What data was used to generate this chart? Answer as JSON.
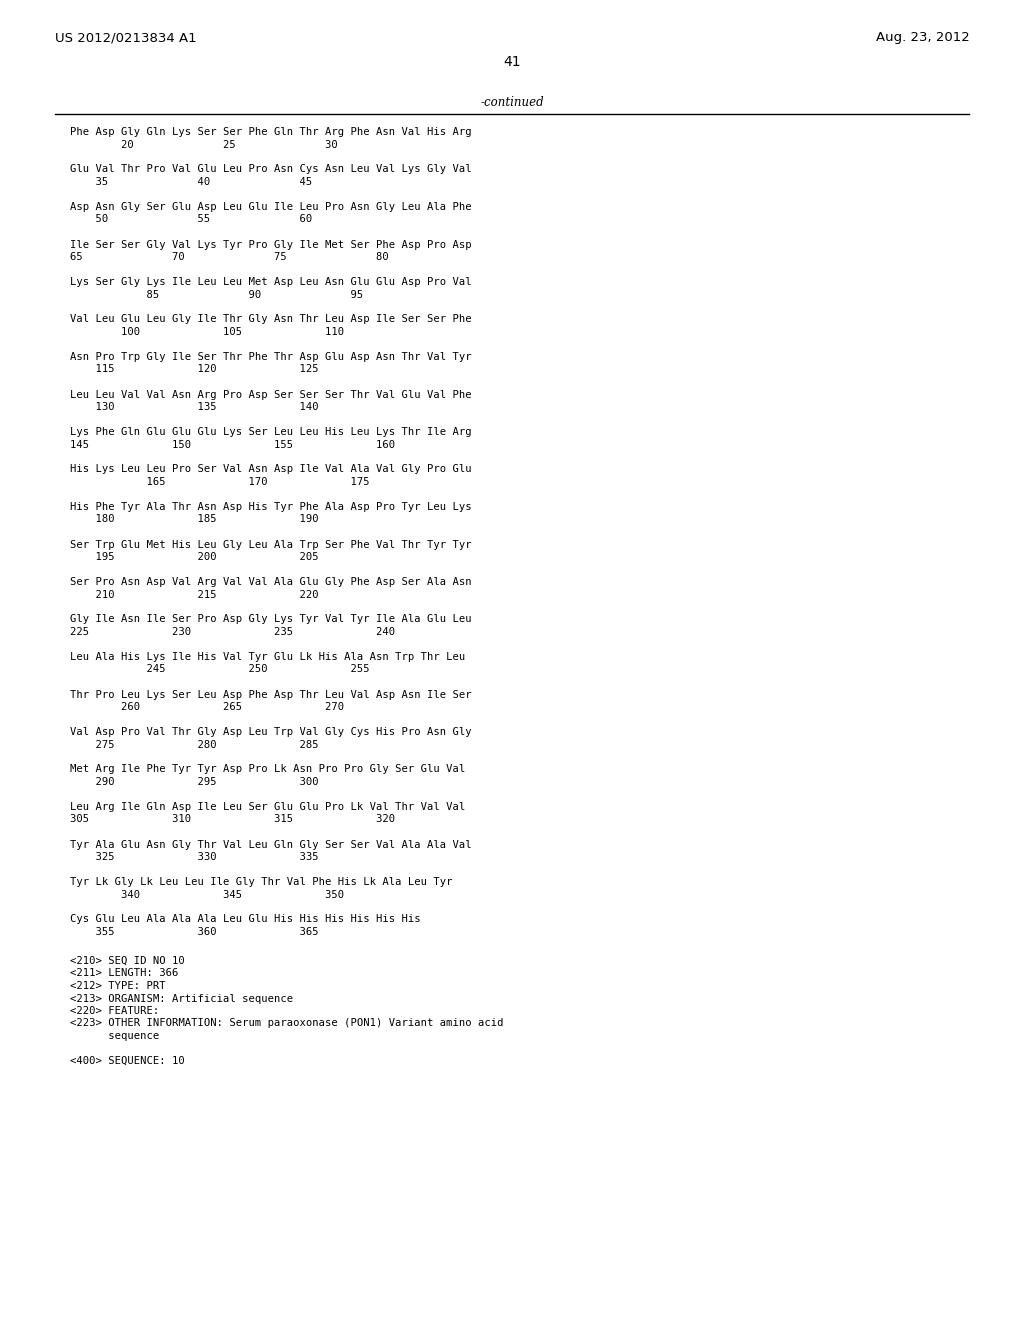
{
  "header_left": "US 2012/0213834 A1",
  "header_right": "Aug. 23, 2012",
  "page_number": "41",
  "continued_label": "-continued",
  "background_color": "#ffffff",
  "text_color": "#000000",
  "sequence_blocks": [
    [
      "Phe Asp Gly Gln Lys Ser Ser Phe Gln Thr Arg Phe Asn Val His Arg",
      "        20              25              30"
    ],
    [
      "Glu Val Thr Pro Val Glu Leu Pro Asn Cys Asn Leu Val Lys Gly Val",
      "    35              40              45"
    ],
    [
      "Asp Asn Gly Ser Glu Asp Leu Glu Ile Leu Pro Asn Gly Leu Ala Phe",
      "    50              55              60"
    ],
    [
      "Ile Ser Ser Gly Val Lys Tyr Pro Gly Ile Met Ser Phe Asp Pro Asp",
      "65              70              75              80"
    ],
    [
      "Lys Ser Gly Lys Ile Leu Leu Met Asp Leu Asn Glu Glu Asp Pro Val",
      "            85              90              95"
    ],
    [
      "Val Leu Glu Leu Gly Ile Thr Gly Asn Thr Leu Asp Ile Ser Ser Phe",
      "        100             105             110"
    ],
    [
      "Asn Pro Trp Gly Ile Ser Thr Phe Thr Asp Glu Asp Asn Thr Val Tyr",
      "    115             120             125"
    ],
    [
      "Leu Leu Val Val Asn Arg Pro Asp Ser Ser Ser Thr Val Glu Val Phe",
      "    130             135             140"
    ],
    [
      "Lys Phe Gln Glu Glu Glu Lys Ser Leu Leu His Leu Lys Thr Ile Arg",
      "145             150             155             160"
    ],
    [
      "His Lys Leu Leu Pro Ser Val Asn Asp Ile Val Ala Val Gly Pro Glu",
      "            165             170             175"
    ],
    [
      "His Phe Tyr Ala Thr Asn Asp His Tyr Phe Ala Asp Pro Tyr Leu Lys",
      "    180             185             190"
    ],
    [
      "Ser Trp Glu Met His Leu Gly Leu Ala Trp Ser Phe Val Thr Tyr Tyr",
      "    195             200             205"
    ],
    [
      "Ser Pro Asn Asp Val Arg Val Val Ala Glu Gly Phe Asp Ser Ala Asn",
      "    210             215             220"
    ],
    [
      "Gly Ile Asn Ile Ser Pro Asp Gly Lys Tyr Val Tyr Ile Ala Glu Leu",
      "225             230             235             240"
    ],
    [
      "Leu Ala His Lys Ile His Val Tyr Glu Lk His Ala Asn Trp Thr Leu",
      "            245             250             255"
    ],
    [
      "Thr Pro Leu Lys Ser Leu Asp Phe Asp Thr Leu Val Asp Asn Ile Ser",
      "        260             265             270"
    ],
    [
      "Val Asp Pro Val Thr Gly Asp Leu Trp Val Gly Cys His Pro Asn Gly",
      "    275             280             285"
    ],
    [
      "Met Arg Ile Phe Tyr Tyr Asp Pro Lk Asn Pro Pro Gly Ser Glu Val",
      "    290             295             300"
    ],
    [
      "Leu Arg Ile Gln Asp Ile Leu Ser Glu Glu Pro Lk Val Thr Val Val",
      "305             310             315             320"
    ],
    [
      "Tyr Ala Glu Asn Gly Thr Val Leu Gln Gly Ser Ser Val Ala Ala Val",
      "    325             330             335"
    ],
    [
      "Tyr Lk Gly Lk Leu Leu Ile Gly Thr Val Phe His Lk Ala Leu Tyr",
      "        340             345             350"
    ],
    [
      "Cys Glu Leu Ala Ala Ala Leu Glu His His His His His His",
      "    355             360             365"
    ]
  ],
  "metadata_lines": [
    "<210> SEQ ID NO 10",
    "<211> LENGTH: 366",
    "<212> TYPE: PRT",
    "<213> ORGANISM: Artificial sequence",
    "<220> FEATURE:",
    "<223> OTHER INFORMATION: Serum paraoxonase (PON1) Variant amino acid",
    "      sequence",
    "",
    "<400> SEQUENCE: 10"
  ]
}
